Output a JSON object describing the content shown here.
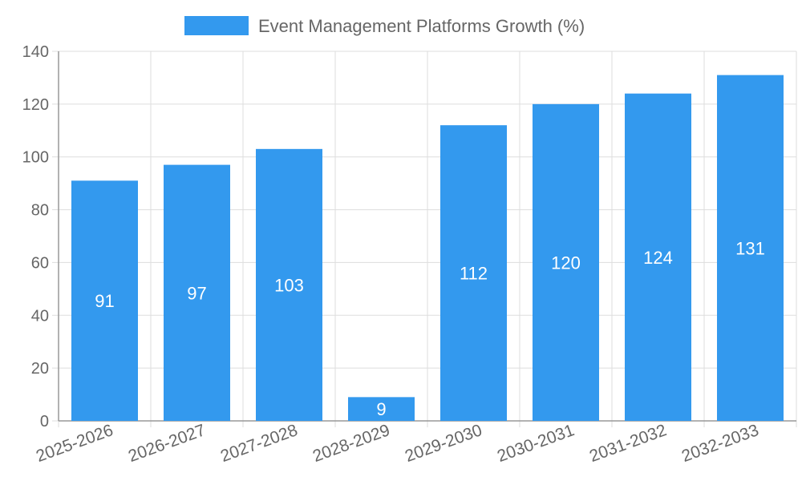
{
  "chart_data": {
    "type": "bar",
    "categories": [
      "2025-2026",
      "2026-2027",
      "2027-2028",
      "2028-2029",
      "2029-2030",
      "2030-2031",
      "2031-2032",
      "2032-2033"
    ],
    "series": [
      {
        "name": "Event Management Platforms Growth (%)",
        "values": [
          91,
          97,
          103,
          9,
          112,
          120,
          124,
          131
        ]
      }
    ],
    "ylim": [
      0,
      140
    ],
    "yticks": [
      0,
      20,
      40,
      60,
      80,
      100,
      120,
      140
    ],
    "grid": true,
    "legend_position": "top-center",
    "bar_color": "#3399ee",
    "data_labels": [
      "91",
      "97",
      "103",
      "9",
      "112",
      "120",
      "124",
      "131"
    ]
  }
}
